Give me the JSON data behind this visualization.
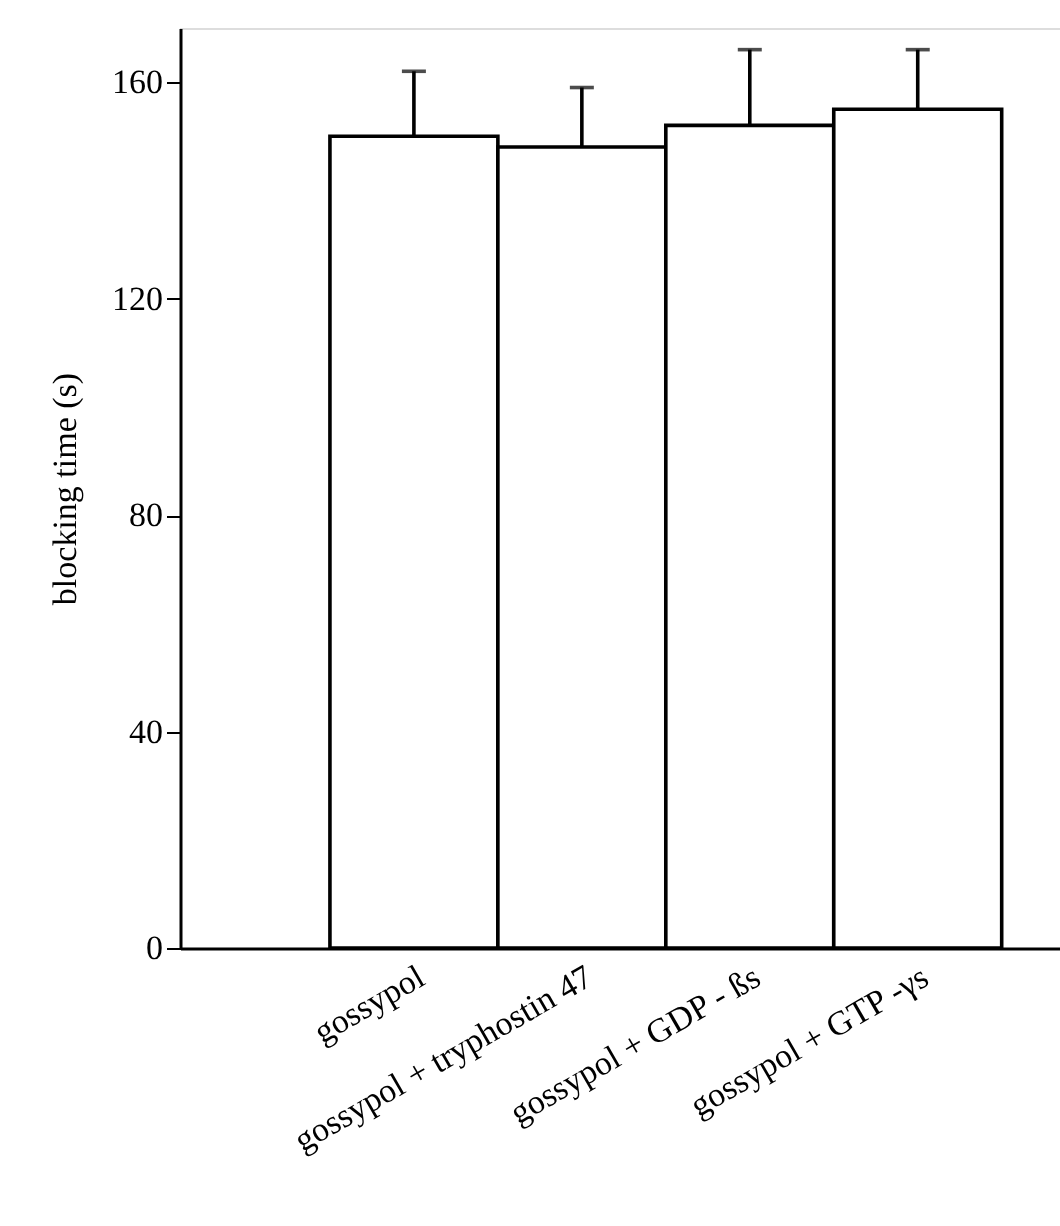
{
  "chart_data": {
    "type": "bar",
    "ylabel": "blocking time (s)",
    "categories": [
      "gossypol",
      "gossypol + tryphostin 47",
      "gossypol + GDP - ßs",
      "gossypol + GTP -γs"
    ],
    "values": [
      150,
      148,
      152,
      155
    ],
    "errors": [
      [
        150,
        162
      ],
      [
        148,
        159
      ],
      [
        152,
        166
      ],
      [
        155,
        166
      ]
    ],
    "colors": [
      "#ffffff",
      "#ffffff",
      "#ffffff",
      "#ffffff"
    ],
    "ylim": [
      0,
      170
    ],
    "yticks": [
      0,
      40,
      80,
      120,
      160
    ],
    "grid": false
  }
}
